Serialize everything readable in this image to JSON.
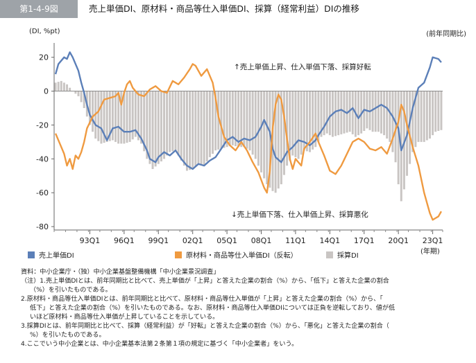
{
  "header": {
    "figure_number": "第1-4-9図",
    "title": "売上単価DI、原材料・商品等仕入単価DI、採算（経常利益）DIの推移"
  },
  "axes": {
    "y_unit": "(DI, %pt)",
    "right_note": "(前年同期比)",
    "x_unit": "(年期)"
  },
  "annotations": {
    "upper": "↑売上単価上昇、仕入単価下落、採算好転",
    "lower": "↓売上単価下落、仕入単価上昇、採算悪化"
  },
  "legend": [
    {
      "label": "売上単価DI",
      "color": "#5b7fb8"
    },
    {
      "label": "原材料・商品等仕入単価DI（反転）",
      "color": "#ef9a40"
    },
    {
      "label": "採算DI",
      "color": "#c9c5c3"
    }
  ],
  "notes": {
    "source": "資料：中小企業庁・（独）中小企業基盤整備機構「中小企業景況調査」",
    "n1a": "（注）1.売上単価DIとは、前年同期比と比べて、売上単価が「上昇」と答えた企業の割合（%）から、「低下」と答えた企業の割合",
    "n1b": "（%）を引いたものである。",
    "n2a": "2.原材料・商品等仕入単価DIとは、前年同期比と比べて、原材料・商品等仕入単価が「上昇」と答えた企業の割合（%）から、「",
    "n2b": "低下」と答えた企業の割合（%）を引いたものである。なお、原材料・商品等仕入単価DIについては正負を逆転しており、値が低",
    "n2c": "いほど原材料・商品等仕入単価が上昇していることを示している。",
    "n3a": "3.採算DIとは、前年同期比と比べて、採算（経常利益）が「好転」と答えた企業の割合（%）から、「悪化」と答えた企業の割合（",
    "n3b": "%）を引いたものである。",
    "n4": "4.ここでいう中小企業とは、中小企業基本法第２条第１項の規定に基づく「中小企業者」をいう。"
  },
  "chart_data": {
    "type": "bar+line",
    "x_start": "1990Q1",
    "x_end": "2023Q4",
    "x_tick_labels": [
      "93Q1",
      "96Q1",
      "99Q1",
      "02Q1",
      "05Q1",
      "08Q1",
      "11Q1",
      "14Q1",
      "17Q1",
      "20Q1",
      "23Q1"
    ],
    "y_ticks": [
      20,
      0,
      -20,
      -40,
      -60,
      -80
    ],
    "ylim": [
      -82,
      26
    ],
    "series": [
      {
        "name": "売上単価DI",
        "kind": "line",
        "color": "#5b7fb8",
        "keypoints": [
          [
            "1990Q1",
            10
          ],
          [
            "1990Q2",
            16
          ],
          [
            "1990Q4",
            20
          ],
          [
            "1991Q1",
            19
          ],
          [
            "1991Q2",
            23
          ],
          [
            "1991Q3",
            20
          ],
          [
            "1991Q4",
            16
          ],
          [
            "1992Q1",
            12
          ],
          [
            "1992Q2",
            5
          ],
          [
            "1992Q3",
            -1
          ],
          [
            "1992Q4",
            -8
          ],
          [
            "1993Q1",
            -14
          ],
          [
            "1993Q3",
            -20
          ],
          [
            "1994Q1",
            -22
          ],
          [
            "1994Q3",
            -29
          ],
          [
            "1995Q1",
            -22
          ],
          [
            "1995Q3",
            -21
          ],
          [
            "1996Q1",
            -24
          ],
          [
            "1996Q3",
            -24
          ],
          [
            "1997Q1",
            -23
          ],
          [
            "1997Q3",
            -28
          ],
          [
            "1998Q1",
            -35
          ],
          [
            "1998Q2",
            -40
          ],
          [
            "1998Q4",
            -42
          ],
          [
            "1999Q1",
            -39
          ],
          [
            "1999Q3",
            -36
          ],
          [
            "2000Q1",
            -38
          ],
          [
            "2000Q3",
            -35
          ],
          [
            "2001Q1",
            -40
          ],
          [
            "2001Q3",
            -44
          ],
          [
            "2002Q1",
            -46
          ],
          [
            "2002Q3",
            -43
          ],
          [
            "2003Q1",
            -44
          ],
          [
            "2003Q3",
            -41
          ],
          [
            "2004Q1",
            -39
          ],
          [
            "2004Q3",
            -34
          ],
          [
            "2005Q1",
            -29
          ],
          [
            "2005Q3",
            -27
          ],
          [
            "2006Q1",
            -30
          ],
          [
            "2006Q3",
            -28
          ],
          [
            "2007Q1",
            -29
          ],
          [
            "2007Q3",
            -27
          ],
          [
            "2008Q1",
            -21
          ],
          [
            "2008Q2",
            -17
          ],
          [
            "2008Q4",
            -24
          ],
          [
            "2009Q1",
            -34
          ],
          [
            "2009Q2",
            -39
          ],
          [
            "2009Q4",
            -42
          ],
          [
            "2010Q2",
            -36
          ],
          [
            "2010Q4",
            -33
          ],
          [
            "2011Q2",
            -29
          ],
          [
            "2011Q4",
            -30
          ],
          [
            "2012Q2",
            -32
          ],
          [
            "2012Q4",
            -29
          ],
          [
            "2013Q1",
            -26
          ],
          [
            "2013Q3",
            -21
          ],
          [
            "2014Q1",
            -15
          ],
          [
            "2014Q3",
            -12
          ],
          [
            "2015Q1",
            -11
          ],
          [
            "2015Q3",
            -13
          ],
          [
            "2016Q1",
            -10
          ],
          [
            "2016Q3",
            -16
          ],
          [
            "2017Q1",
            -11
          ],
          [
            "2017Q3",
            -12
          ],
          [
            "2018Q1",
            -10
          ],
          [
            "2018Q3",
            -8
          ],
          [
            "2019Q1",
            -10
          ],
          [
            "2019Q3",
            -15
          ],
          [
            "2020Q1",
            -22
          ],
          [
            "2020Q2",
            -35
          ],
          [
            "2020Q4",
            -26
          ],
          [
            "2021Q2",
            -10
          ],
          [
            "2021Q4",
            2
          ],
          [
            "2022Q2",
            5
          ],
          [
            "2022Q4",
            14
          ],
          [
            "2023Q1",
            20
          ],
          [
            "2023Q3",
            19
          ],
          [
            "2023Q4",
            17
          ]
        ]
      },
      {
        "name": "原材料・商品等仕入単価DI（反転）",
        "kind": "line",
        "color": "#ef9a40",
        "keypoints": [
          [
            "1990Q1",
            -25
          ],
          [
            "1990Q3",
            -33
          ],
          [
            "1990Q4",
            -37
          ],
          [
            "1991Q1",
            -44
          ],
          [
            "1991Q2",
            -40
          ],
          [
            "1991Q3",
            -46
          ],
          [
            "1991Q4",
            -38
          ],
          [
            "1992Q1",
            -40
          ],
          [
            "1992Q2",
            -36
          ],
          [
            "1992Q3",
            -30
          ],
          [
            "1992Q4",
            -22
          ],
          [
            "1993Q2",
            -15
          ],
          [
            "1993Q4",
            -12
          ],
          [
            "1994Q2",
            -5
          ],
          [
            "1994Q4",
            -4
          ],
          [
            "1995Q2",
            -3
          ],
          [
            "1995Q3",
            -1
          ],
          [
            "1995Q4",
            -8
          ],
          [
            "1996Q1",
            -1
          ],
          [
            "1996Q2",
            4
          ],
          [
            "1996Q3",
            6
          ],
          [
            "1996Q4",
            2
          ],
          [
            "1997Q2",
            -2
          ],
          [
            "1997Q4",
            -3
          ],
          [
            "1998Q2",
            1
          ],
          [
            "1998Q4",
            3
          ],
          [
            "1999Q2",
            0
          ],
          [
            "1999Q4",
            -1
          ],
          [
            "2000Q2",
            6
          ],
          [
            "2000Q4",
            4
          ],
          [
            "2001Q2",
            8
          ],
          [
            "2001Q4",
            13
          ],
          [
            "2002Q1",
            16
          ],
          [
            "2002Q2",
            15
          ],
          [
            "2002Q4",
            9
          ],
          [
            "2003Q2",
            13
          ],
          [
            "2003Q4",
            5
          ],
          [
            "2004Q1",
            -4
          ],
          [
            "2004Q2",
            -15
          ],
          [
            "2004Q4",
            -27
          ],
          [
            "2005Q2",
            -32
          ],
          [
            "2005Q4",
            -35
          ],
          [
            "2006Q2",
            -30
          ],
          [
            "2006Q4",
            -35
          ],
          [
            "2007Q2",
            -42
          ],
          [
            "2007Q4",
            -48
          ],
          [
            "2008Q2",
            -57
          ],
          [
            "2008Q3",
            -60
          ],
          [
            "2008Q4",
            -47
          ],
          [
            "2009Q1",
            -22
          ],
          [
            "2009Q2",
            -8
          ],
          [
            "2009Q3",
            -2
          ],
          [
            "2009Q4",
            -5
          ],
          [
            "2010Q1",
            -15
          ],
          [
            "2010Q2",
            -28
          ],
          [
            "2010Q3",
            -40
          ],
          [
            "2010Q4",
            -46
          ],
          [
            "2011Q1",
            -40
          ],
          [
            "2011Q3",
            -44
          ],
          [
            "2011Q4",
            -34
          ],
          [
            "2012Q2",
            -30
          ],
          [
            "2012Q4",
            -25
          ],
          [
            "2013Q1",
            -30
          ],
          [
            "2013Q3",
            -38
          ],
          [
            "2014Q1",
            -47
          ],
          [
            "2014Q3",
            -49
          ],
          [
            "2015Q1",
            -44
          ],
          [
            "2015Q3",
            -37
          ],
          [
            "2016Q1",
            -30
          ],
          [
            "2016Q3",
            -28
          ],
          [
            "2017Q1",
            -30
          ],
          [
            "2017Q3",
            -34
          ],
          [
            "2018Q1",
            -35
          ],
          [
            "2018Q3",
            -33
          ],
          [
            "2019Q1",
            -37
          ],
          [
            "2019Q3",
            -28
          ],
          [
            "2020Q1",
            -18
          ],
          [
            "2020Q2",
            -8
          ],
          [
            "2020Q3",
            -12
          ],
          [
            "2020Q4",
            -20
          ],
          [
            "2021Q2",
            -33
          ],
          [
            "2021Q4",
            -44
          ],
          [
            "2022Q2",
            -60
          ],
          [
            "2022Q4",
            -72
          ],
          [
            "2023Q1",
            -76
          ],
          [
            "2023Q2",
            -75
          ],
          [
            "2023Q3",
            -74
          ],
          [
            "2023Q4",
            -71
          ]
        ]
      },
      {
        "name": "採算DI",
        "kind": "bar",
        "color": "#c9c5c3",
        "keypoints": [
          [
            "1990Q1",
            5
          ],
          [
            "1990Q3",
            6
          ],
          [
            "1991Q1",
            4
          ],
          [
            "1991Q3",
            0
          ],
          [
            "1992Q1",
            -3
          ],
          [
            "1992Q3",
            -10
          ],
          [
            "1993Q1",
            -20
          ],
          [
            "1993Q3",
            -28
          ],
          [
            "1994Q1",
            -31
          ],
          [
            "1994Q3",
            -30
          ],
          [
            "1995Q1",
            -29
          ],
          [
            "1995Q3",
            -31
          ],
          [
            "1996Q1",
            -31
          ],
          [
            "1996Q3",
            -30
          ],
          [
            "1997Q1",
            -27
          ],
          [
            "1997Q3",
            -31
          ],
          [
            "1998Q1",
            -40
          ],
          [
            "1998Q3",
            -46
          ],
          [
            "1999Q1",
            -43
          ],
          [
            "1999Q3",
            -40
          ],
          [
            "2000Q1",
            -36
          ],
          [
            "2000Q3",
            -35
          ],
          [
            "2001Q1",
            -41
          ],
          [
            "2001Q3",
            -47
          ],
          [
            "2002Q1",
            -46
          ],
          [
            "2002Q3",
            -43
          ],
          [
            "2003Q1",
            -44
          ],
          [
            "2003Q3",
            -39
          ],
          [
            "2004Q1",
            -35
          ],
          [
            "2004Q3",
            -34
          ],
          [
            "2005Q1",
            -33
          ],
          [
            "2005Q3",
            -32
          ],
          [
            "2006Q1",
            -33
          ],
          [
            "2006Q3",
            -33
          ],
          [
            "2007Q1",
            -35
          ],
          [
            "2007Q3",
            -40
          ],
          [
            "2008Q1",
            -48
          ],
          [
            "2008Q3",
            -55
          ],
          [
            "2009Q1",
            -59
          ],
          [
            "2009Q2",
            -60
          ],
          [
            "2009Q4",
            -55
          ],
          [
            "2010Q2",
            -44
          ],
          [
            "2010Q4",
            -38
          ],
          [
            "2011Q2",
            -40
          ],
          [
            "2011Q4",
            -35
          ],
          [
            "2012Q2",
            -36
          ],
          [
            "2012Q4",
            -33
          ],
          [
            "2013Q2",
            -27
          ],
          [
            "2013Q4",
            -25
          ],
          [
            "2014Q2",
            -27
          ],
          [
            "2014Q4",
            -26
          ],
          [
            "2015Q2",
            -25
          ],
          [
            "2015Q4",
            -24
          ],
          [
            "2016Q2",
            -27
          ],
          [
            "2016Q4",
            -25
          ],
          [
            "2017Q2",
            -22
          ],
          [
            "2017Q4",
            -24
          ],
          [
            "2018Q2",
            -24
          ],
          [
            "2018Q4",
            -26
          ],
          [
            "2019Q2",
            -30
          ],
          [
            "2019Q4",
            -42
          ],
          [
            "2020Q1",
            -55
          ],
          [
            "2020Q2",
            -65
          ],
          [
            "2020Q3",
            -58
          ],
          [
            "2020Q4",
            -50
          ],
          [
            "2021Q2",
            -36
          ],
          [
            "2021Q4",
            -30
          ],
          [
            "2022Q2",
            -30
          ],
          [
            "2022Q4",
            -28
          ],
          [
            "2023Q2",
            -24
          ],
          [
            "2023Q4",
            -23
          ]
        ]
      }
    ]
  }
}
